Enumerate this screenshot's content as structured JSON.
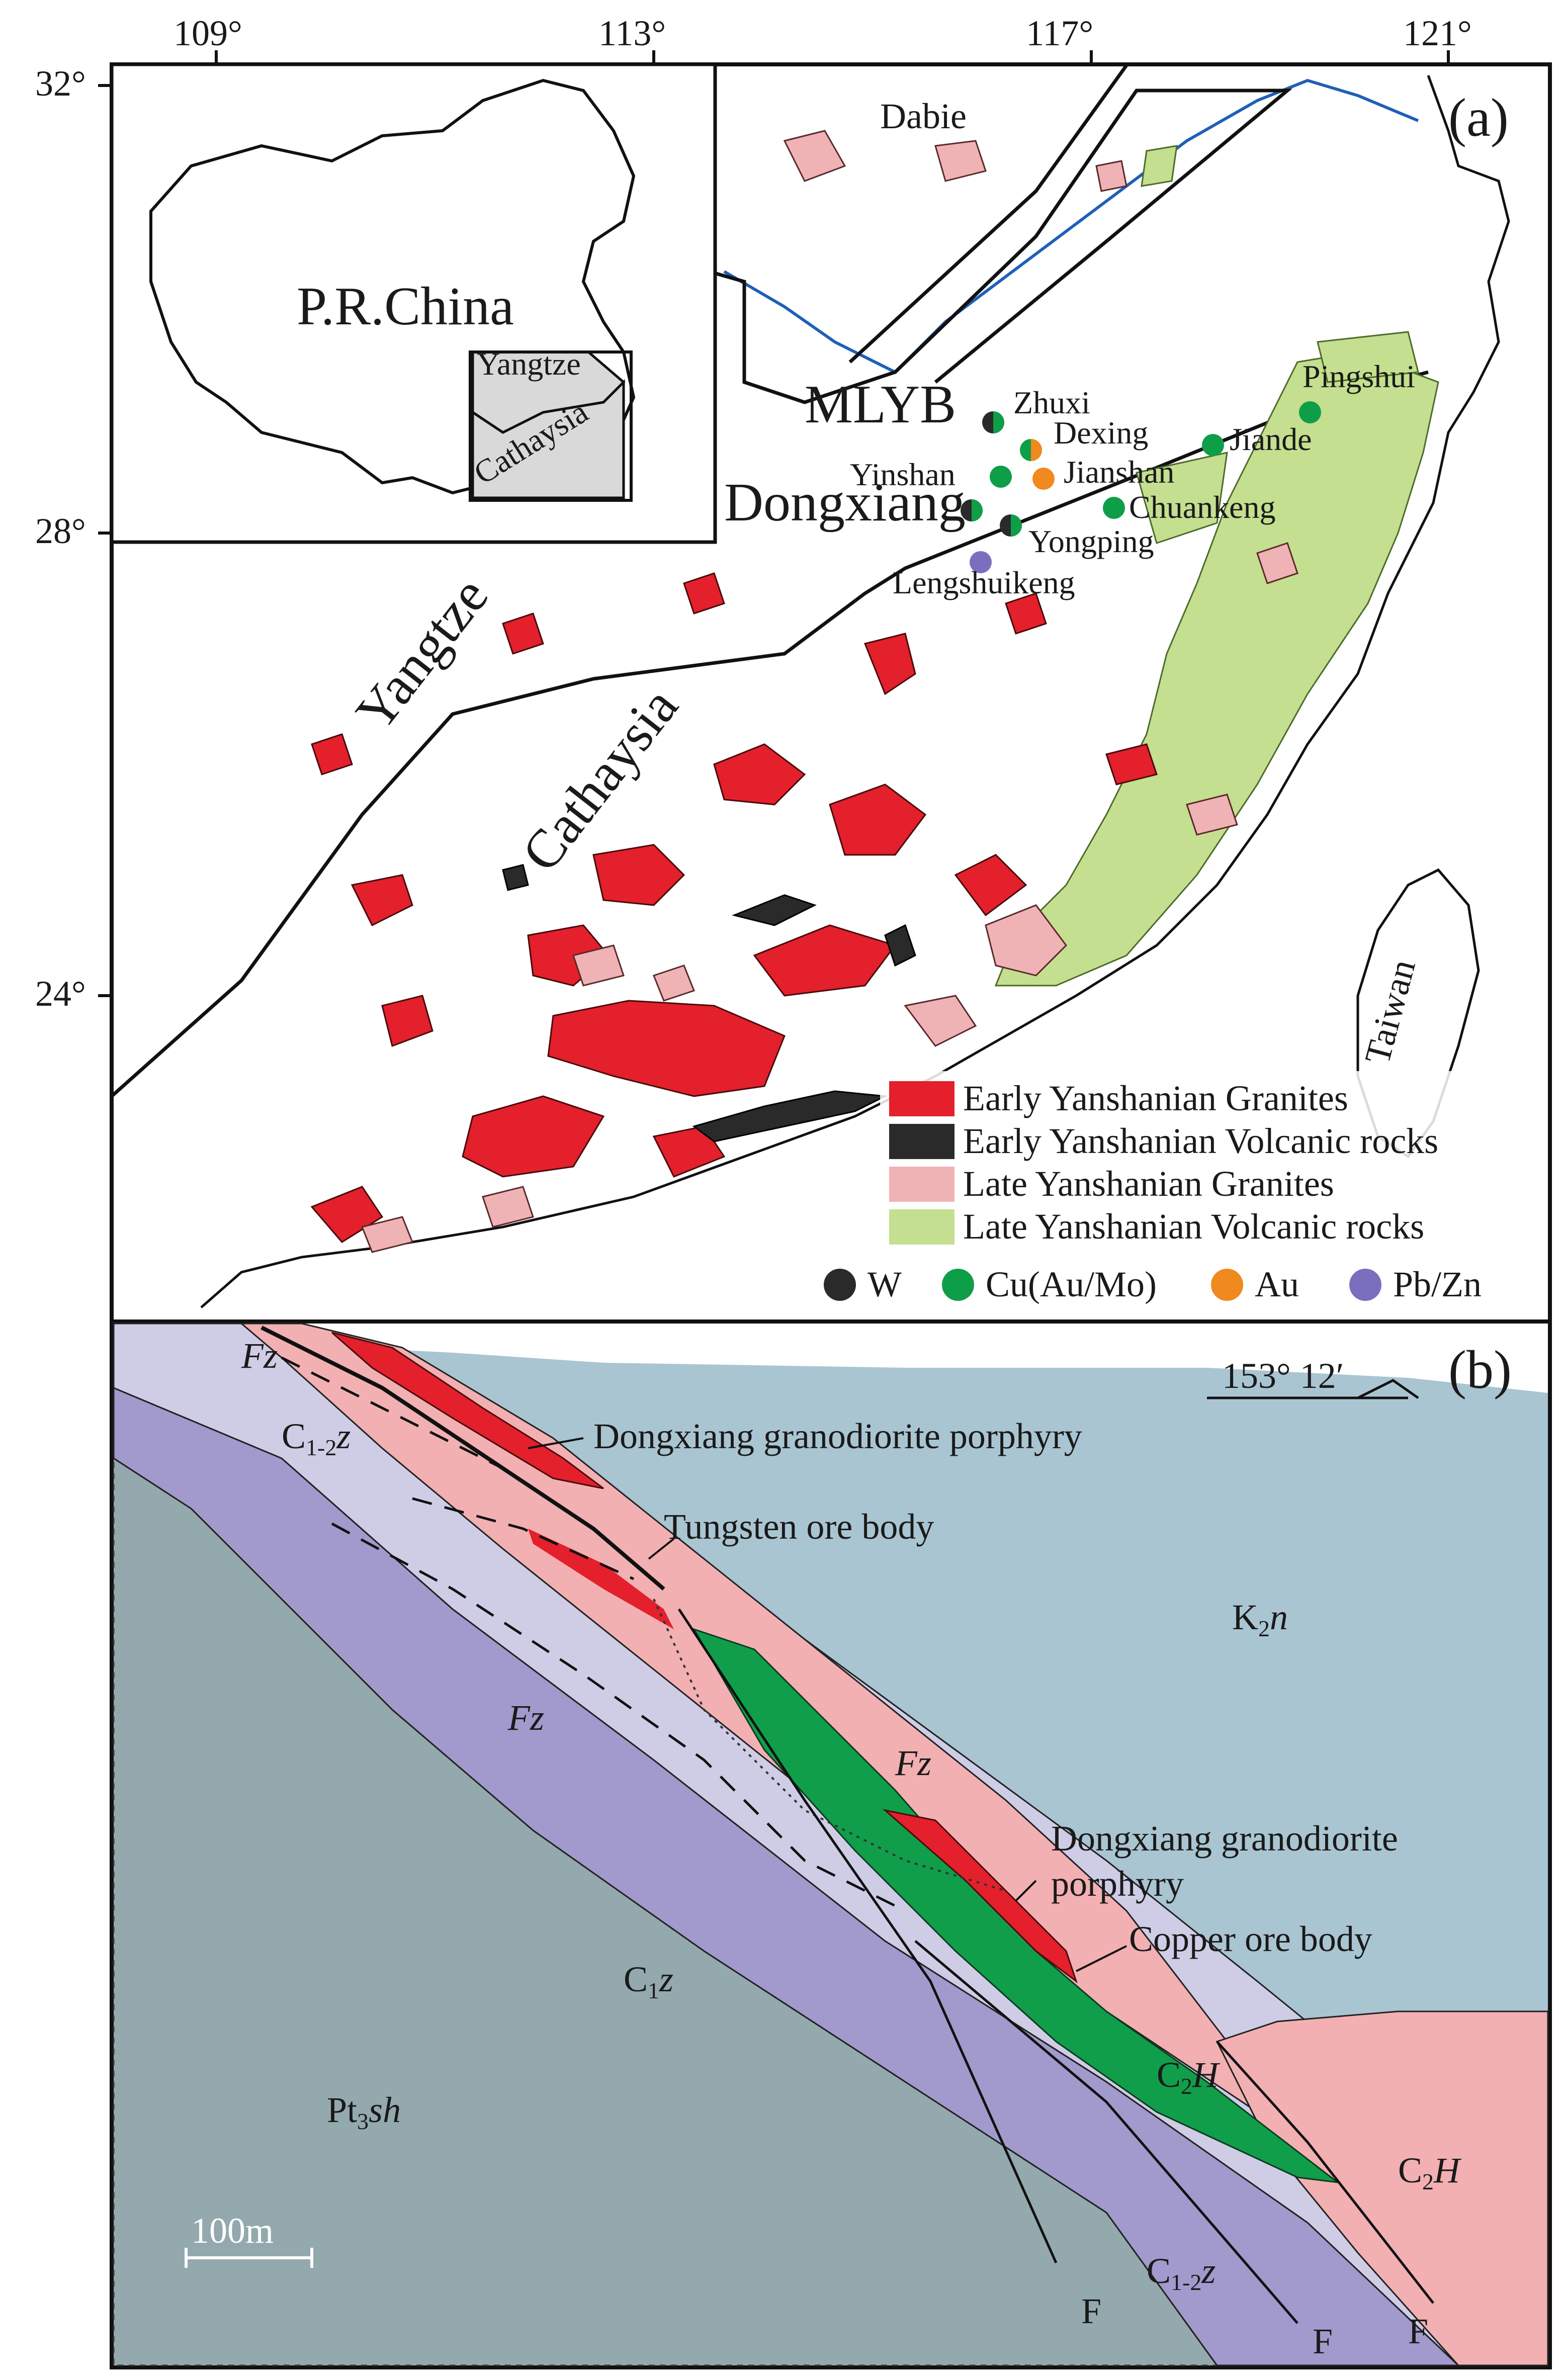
{
  "panel_a": {
    "label": "(a)",
    "lon_ticks": [
      "109°",
      "113°",
      "117°",
      "121°"
    ],
    "lat_ticks": [
      "32°",
      "28°",
      "24°"
    ],
    "inset": {
      "country": "P.R.China",
      "block_yangtze": "Yangtze",
      "block_cathaysia": "Cathaysia"
    },
    "regions": {
      "dabie": "Dabie",
      "mlyb": "MLYB",
      "yangtze": "Yangtze",
      "cathaysia": "Cathaysia",
      "taiwan": "Taiwan"
    },
    "deposits": [
      {
        "name": "Zhuxi",
        "type": "W"
      },
      {
        "name": "Dexing",
        "type": "Cu-Au"
      },
      {
        "name": "Jiande",
        "type": "Cu"
      },
      {
        "name": "Pingshui",
        "type": "Cu"
      },
      {
        "name": "Yinshan",
        "type": "Cu"
      },
      {
        "name": "Jianshan",
        "type": "Au"
      },
      {
        "name": "Dongxiang",
        "type": "W-Cu"
      },
      {
        "name": "Chuankeng",
        "type": "Cu"
      },
      {
        "name": "Yongping",
        "type": "W-Cu"
      },
      {
        "name": "Lengshuikeng",
        "type": "Pb/Zn"
      }
    ],
    "legend": [
      {
        "label": "Early Yanshanian Granites",
        "color": "#e3202b"
      },
      {
        "label": "Early Yanshanian Volcanic rocks",
        "color": "#2a2a2a"
      },
      {
        "label": "Late Yanshanian Granites",
        "color": "#f0b3b5"
      },
      {
        "label": "Late  Yanshanian Volcanic rocks",
        "color": "#c4df8f"
      }
    ],
    "deposit_legend": [
      {
        "label": "W",
        "color": "#2a2a2a"
      },
      {
        "label": "Cu(Au/Mo)",
        "color": "#0f9e48"
      },
      {
        "label": "Au",
        "color": "#f0891e"
      },
      {
        "label": "Pb/Zn",
        "color": "#7a6fbf"
      }
    ]
  },
  "panel_b": {
    "label": "(b)",
    "orientation": "153° 12′",
    "scale_bar": "100m",
    "callouts": {
      "porphyry_top": "Dongxiang granodiorite porphyry",
      "tungsten": "Tungsten ore body",
      "porphyry_mid_1": "Dongxiang granodiorite",
      "porphyry_mid_2": "porphyry",
      "copper": "Copper ore body"
    },
    "units": {
      "fz": "Fz",
      "c12z_main": "C",
      "c12z_sub": "1-2",
      "c12z_tail": "z",
      "c1z_main": "C",
      "c1z_sub": "1",
      "c1z_tail": "z",
      "pt3sh_main": "Pt",
      "pt3sh_sub": "3",
      "pt3sh_tail": "sh",
      "k2n_main": "K",
      "k2n_sub": "2",
      "k2n_tail": "n",
      "c2h_main": "C",
      "c2h_sub": "2",
      "c2h_tail": "H",
      "fault": "F"
    },
    "colors": {
      "k2n": "#a9c5d1",
      "c12z": "#cfcde6",
      "c1z": "#a299cc",
      "pt3sh": "#93a9ad",
      "c2h": "#f2b0b3",
      "ore_copper": "#119e4a",
      "ore_tungsten": "#e3202b"
    }
  }
}
